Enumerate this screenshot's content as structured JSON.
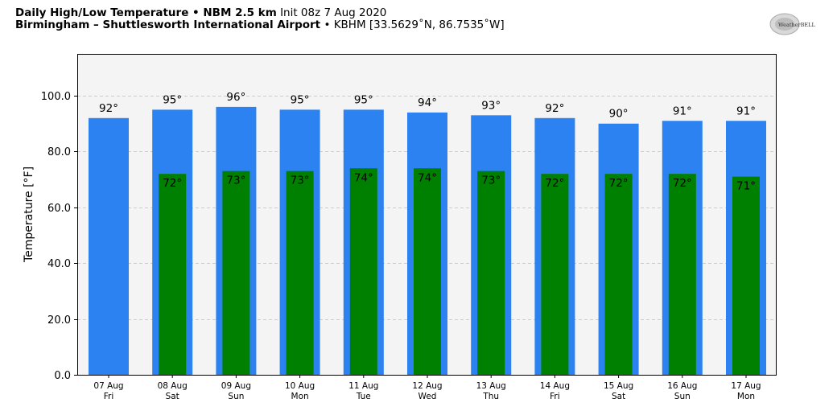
{
  "header": {
    "line1_bold": "Daily High/Low Temperature • NBM 2.5 km",
    "line1_normal": "Init 08z 7 Aug 2020",
    "line2_bold": "Birmingham – Shuttlesworth International Airport",
    "line2_normal": "• KBHM [33.5629˚N, 86.7535˚W]"
  },
  "logo": {
    "text": "WeatherBELL",
    "icon": "weatherbell-logo"
  },
  "colors": {
    "high": "#2b82f0",
    "low": "#008000",
    "plot_bg": "#f4f4f4",
    "grid": "#cccccc"
  },
  "chart_data": {
    "type": "bar",
    "ylabel": "Temperature [°F]",
    "ylim": [
      0,
      115
    ],
    "yticks": [
      0,
      20,
      40,
      60,
      80,
      100
    ],
    "ytick_labels": [
      "0.0",
      "20.0",
      "40.0",
      "60.0",
      "80.0",
      "100.0"
    ],
    "grid": true,
    "categories": [
      {
        "date": "07 Aug",
        "day": "Fri"
      },
      {
        "date": "08 Aug",
        "day": "Sat"
      },
      {
        "date": "09 Aug",
        "day": "Sun"
      },
      {
        "date": "10 Aug",
        "day": "Mon"
      },
      {
        "date": "11 Aug",
        "day": "Tue"
      },
      {
        "date": "12 Aug",
        "day": "Wed"
      },
      {
        "date": "13 Aug",
        "day": "Thu"
      },
      {
        "date": "14 Aug",
        "day": "Fri"
      },
      {
        "date": "15 Aug",
        "day": "Sat"
      },
      {
        "date": "16 Aug",
        "day": "Sun"
      },
      {
        "date": "17 Aug",
        "day": "Mon"
      }
    ],
    "series": [
      {
        "name": "",
        "role": "high",
        "values": [
          92,
          95,
          96,
          95,
          95,
          94,
          93,
          92,
          90,
          91,
          91
        ],
        "labels": [
          "92°",
          "95°",
          "96°",
          "95°",
          "95°",
          "94°",
          "93°",
          "92°",
          "90°",
          "91°",
          "91°"
        ]
      },
      {
        "name": "",
        "role": "low",
        "values": [
          null,
          72,
          73,
          73,
          74,
          74,
          73,
          72,
          72,
          72,
          71
        ],
        "labels": [
          "",
          "72°",
          "73°",
          "73°",
          "74°",
          "74°",
          "73°",
          "72°",
          "72°",
          "72°",
          "71°"
        ]
      }
    ]
  }
}
